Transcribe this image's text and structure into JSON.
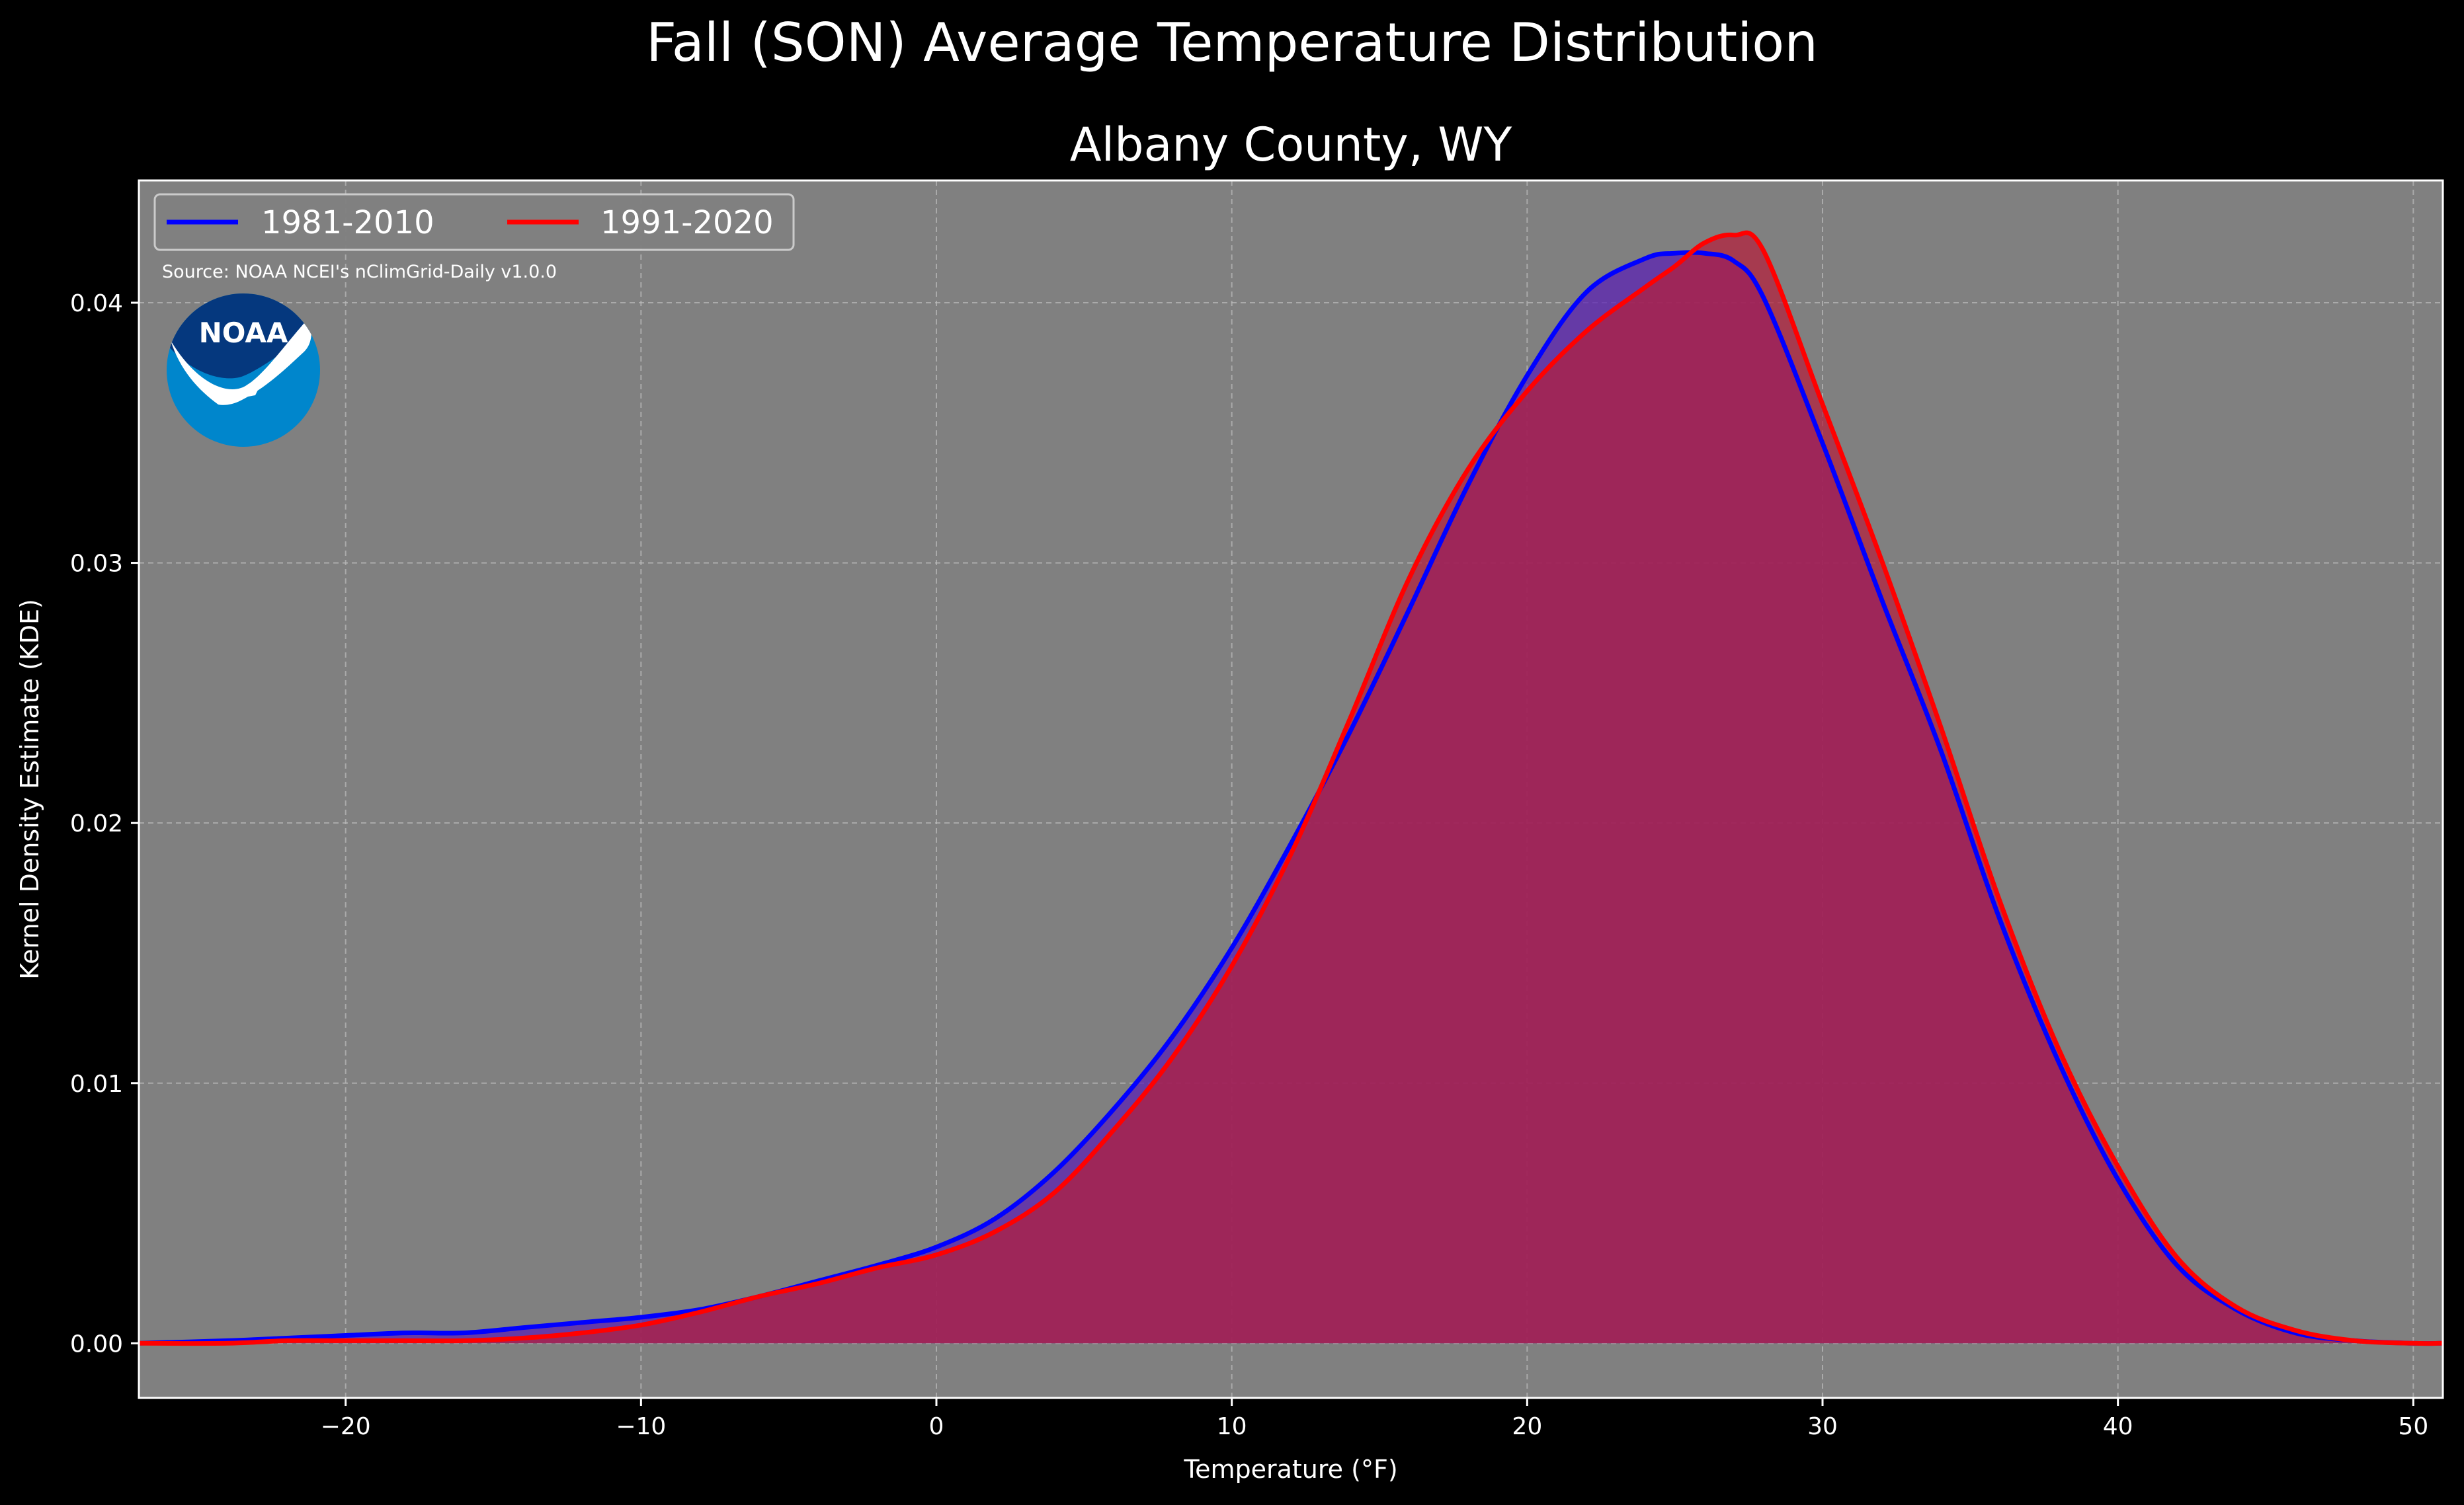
{
  "chart_data": {
    "type": "area",
    "title": "Fall (SON) Average Temperature Distribution",
    "subtitle": "Albany County, WY",
    "xlabel": "Temperature (°F)",
    "ylabel": "Kernel Density Estimate (KDE)",
    "xlim": [
      -27,
      51
    ],
    "ylim": [
      -0.0021,
      0.0447
    ],
    "x_ticks": [
      -20,
      -10,
      0,
      10,
      20,
      30,
      40,
      50
    ],
    "x_tick_labels": [
      "−20",
      "−10",
      "0",
      "10",
      "20",
      "30",
      "40",
      "50"
    ],
    "y_ticks": [
      0.0,
      0.01,
      0.02,
      0.03,
      0.04
    ],
    "y_tick_labels": [
      "0.00",
      "0.01",
      "0.02",
      "0.03",
      "0.04"
    ],
    "grid": true,
    "legend_position": "upper-left",
    "annotation": "Source: NOAA NCEI's nClimGrid-Daily v1.0.0",
    "logo": "NOAA",
    "series": [
      {
        "name": "1981-2010",
        "color": "#0000ff",
        "fill": "#5a1eb4",
        "x": [
          -27,
          -24,
          -22,
          -20,
          -18,
          -16,
          -14,
          -12,
          -10,
          -8,
          -6,
          -4,
          -2,
          0,
          2,
          4,
          6,
          8,
          10,
          12,
          14,
          16,
          18,
          20,
          22,
          24,
          25,
          26,
          27,
          28,
          30,
          32,
          34,
          36,
          38,
          40,
          42,
          44,
          46,
          48,
          50,
          51
        ],
        "y": [
          0.0,
          0.0001,
          0.0002,
          0.0003,
          0.0004,
          0.0004,
          0.0006,
          0.0008,
          0.001,
          0.0013,
          0.0018,
          0.0024,
          0.003,
          0.0037,
          0.0048,
          0.0066,
          0.009,
          0.0118,
          0.0152,
          0.0192,
          0.0235,
          0.0282,
          0.033,
          0.0372,
          0.0404,
          0.0417,
          0.0419,
          0.0419,
          0.0416,
          0.0402,
          0.0346,
          0.0286,
          0.0228,
          0.0163,
          0.0108,
          0.0063,
          0.003,
          0.0013,
          0.0004,
          0.0001,
          0.0,
          0.0
        ]
      },
      {
        "name": "1991-2020",
        "color": "#ff0000",
        "fill": "#b41e3c",
        "x": [
          -27,
          -24,
          -22,
          -20,
          -18,
          -16,
          -14,
          -12,
          -10,
          -8,
          -6,
          -4,
          -2,
          0,
          2,
          4,
          6,
          8,
          10,
          12,
          14,
          16,
          18,
          20,
          22,
          24,
          25,
          26,
          27,
          28,
          30,
          32,
          34,
          36,
          38,
          40,
          42,
          44,
          46,
          48,
          50,
          51
        ],
        "y": [
          0.0,
          0.0,
          0.0001,
          0.0001,
          0.0001,
          0.0001,
          0.0002,
          0.0004,
          0.0007,
          0.0012,
          0.0018,
          0.0023,
          0.0029,
          0.0034,
          0.0043,
          0.0058,
          0.0082,
          0.011,
          0.0145,
          0.0188,
          0.024,
          0.0294,
          0.0336,
          0.0366,
          0.0389,
          0.0406,
          0.0414,
          0.0423,
          0.0426,
          0.042,
          0.0361,
          0.0301,
          0.0237,
          0.017,
          0.0113,
          0.0068,
          0.0033,
          0.0014,
          0.0005,
          0.0001,
          0.0,
          0.0
        ]
      }
    ]
  },
  "colors": {
    "page_background": "#000000",
    "plot_background": "#808080",
    "grid": "#bdbdbd",
    "noaa_light_blue": "#0086cc",
    "noaa_dark_blue": "#05387e"
  }
}
